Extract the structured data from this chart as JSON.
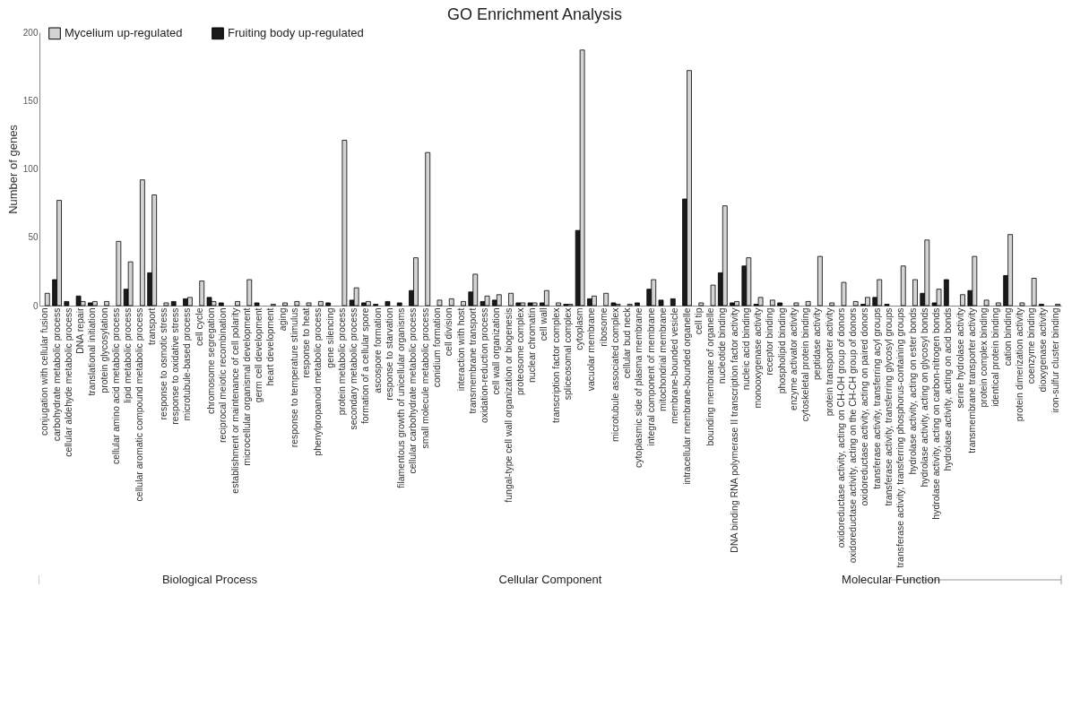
{
  "chart_data": {
    "type": "bar",
    "title": "GO Enrichment Analysis",
    "ylabel": "Number of genes",
    "categories": [
      "conjugation with cellular fusion",
      "carbohydrate metabolic process",
      "cellular aldehyde metabolic process",
      "DNA repair",
      "translational initiation",
      "protein glycosylation",
      "cellular amino acid metabolic process",
      "lipid metabolic process",
      "cellular aromatic compound metabolic process",
      "transport",
      "response to osmotic stress",
      "response to oxidative stress",
      "microtubule-based process",
      "cell cycle",
      "chromosome segregation",
      "reciprocal meiotic recombination",
      "establishment or maintenance of cell polarity",
      "microcellular organismal development",
      "germ cell development",
      "heart development",
      "aging",
      "response to temperature stimulus",
      "response to heat",
      "phenylpropanoid metabolic process",
      "gene silencing",
      "protein metabolic process",
      "secondary metabolic process",
      "formation of a cellular spore",
      "ascospore formation",
      "response to starvation",
      "filamentous growth of unicellular organisms",
      "cellular carbohydrate metabolic process",
      "small molecule metabolic process",
      "conidium formation",
      "cell division",
      "interaction with host",
      "transmembrane transport",
      "oxidation-reduction process",
      "cell wall organization",
      "fungal-type cell wall organization or biogenesis",
      "proteosome complex",
      "nuclear chromatin",
      "cell wall",
      "transcription factor complex",
      "spliceosomal complex",
      "cytoplasm",
      "vacuolar membrane",
      "ribosome",
      "microtubule associated complex",
      "cellular bud neck",
      "cytoplasmic side of plasma membrane",
      "integral component of membrane",
      "mitochondrial membrane",
      "membrane-bounded vesicle",
      "intracellular membrane-bounded organelle",
      "cell tip",
      "bounding membrane of organelle",
      "nucleotide binding",
      "DNA binding RNA polymerase II transcription factor activity",
      "nucleic acid binding",
      "monooxygenase activity",
      "receptor binding",
      "phospholipid binding",
      "enzyme activator activity",
      "cytoskeletal protein binding",
      "peptidase activity",
      "protein transporter activity",
      "oxidoreductase activity, acting on CH-OH group of donors",
      "oxidoreductase activity, acting on the CH-CH group of donors",
      "oxidoreductase activity, acting on paired donors",
      "transferase activity, transferring acyl groups",
      "transferase activity, transferring glycosyl groups",
      "transferase activity, transferring phosphorus-containing groups",
      "hydrolase activity, acting on ester bonds",
      "hydrolase activity, acting on glycosyl bonds",
      "hydrolase activity, acting on carbon-nitrogen bonds",
      "hydrolase activity, acting on acid bonds",
      "serine hydrolase activity",
      "transmembrane transporter activity",
      "protein complex binding",
      "identical protein binding",
      "cation binding",
      "protein dimerization activity",
      "coenzyme binding",
      "dioxygenase activity",
      "iron-sulfur cluster binding"
    ],
    "series": [
      {
        "name": "Fruiting body up-regulated",
        "color": "#1a1a1a",
        "values": [
          0,
          19,
          3,
          7,
          2,
          0,
          0,
          12,
          0,
          24,
          0,
          3,
          5,
          0,
          6,
          2,
          0,
          0,
          2,
          0,
          0,
          0,
          0,
          0,
          2,
          0,
          4,
          2,
          1,
          3,
          2,
          11,
          0,
          0,
          0,
          0,
          10,
          3,
          4,
          0,
          2,
          2,
          2,
          0,
          1,
          55,
          5,
          0,
          2,
          0,
          2,
          12,
          4,
          5,
          78,
          0,
          0,
          24,
          2,
          29,
          1,
          0,
          2,
          0,
          0,
          0,
          0,
          0,
          0,
          1,
          6,
          1,
          0,
          0,
          9,
          2,
          19,
          0,
          11,
          0,
          0,
          22,
          0,
          0,
          1,
          0
        ]
      },
      {
        "name": "Mycelium up-regulated",
        "color": "#d3d3d3",
        "values": [
          9,
          77,
          0,
          3,
          3,
          3,
          47,
          32,
          92,
          81,
          2,
          0,
          6,
          18,
          3,
          0,
          3,
          19,
          0,
          1,
          2,
          3,
          2,
          3,
          0,
          121,
          13,
          3,
          0,
          0,
          0,
          35,
          112,
          4,
          5,
          3,
          23,
          7,
          8,
          9,
          2,
          2,
          11,
          2,
          1,
          187,
          7,
          9,
          1,
          1,
          0,
          19,
          0,
          0,
          172,
          2,
          15,
          73,
          3,
          35,
          6,
          4,
          0,
          2,
          3,
          36,
          2,
          17,
          3,
          6,
          19,
          0,
          29,
          19,
          48,
          12,
          0,
          8,
          36,
          4,
          2,
          52,
          2,
          20,
          0,
          1
        ]
      }
    ],
    "ylim": [
      0,
      200
    ],
    "yticks": [
      0,
      50,
      100,
      150,
      200
    ],
    "legend": "top left",
    "annotations": [
      "Biological Process",
      "Cellular Component",
      "Molecular Function"
    ]
  }
}
